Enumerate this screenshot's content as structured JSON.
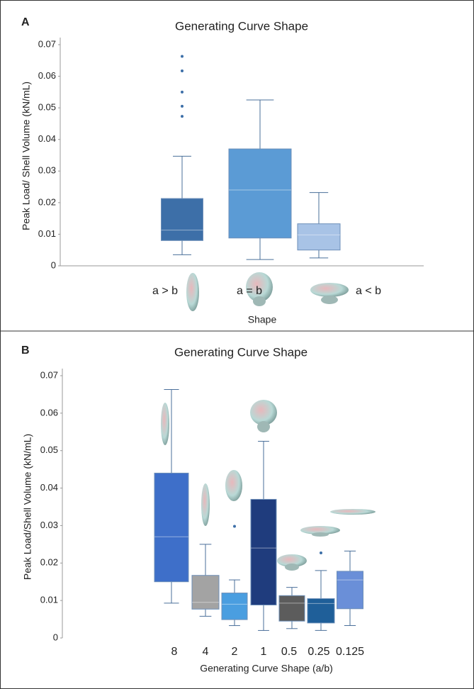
{
  "chart_data": [
    {
      "type": "box",
      "panel_label": "A",
      "title": "Generating Curve Shape",
      "y_label": "Peak Load/ Shell Volume (kN/mL)",
      "x_label": "Shape",
      "categories": [
        "a > b",
        "a = b",
        "a < b"
      ],
      "ylim": [
        0,
        0.07
      ],
      "yticks": [
        0,
        0.01,
        0.02,
        0.03,
        0.04,
        0.05,
        0.06,
        0.07
      ],
      "boxes": [
        {
          "whisker_low": 0.0035,
          "q1": 0.008,
          "median": 0.0113,
          "q3": 0.0213,
          "whisker_high": 0.0347,
          "outliers": [
            0.0473,
            0.0505,
            0.055,
            0.0617,
            0.0663
          ],
          "color": "#3d6fa8"
        },
        {
          "whisker_low": 0.002,
          "q1": 0.0088,
          "median": 0.024,
          "q3": 0.037,
          "whisker_high": 0.0525,
          "outliers": [],
          "color": "#5b9bd5"
        },
        {
          "whisker_low": 0.0025,
          "q1": 0.005,
          "median": 0.0098,
          "q3": 0.0133,
          "whisker_high": 0.0232,
          "outliers": [],
          "color": "#a8c3e6"
        }
      ]
    },
    {
      "type": "box",
      "panel_label": "B",
      "title": "Generating Curve Shape",
      "y_label": "Peak Load/Shell Volume (kN/mL)",
      "x_label": "Generating Curve Shape (a/b)",
      "categories": [
        "8",
        "4",
        "2",
        "1",
        "0.5",
        "0.25",
        "0.125"
      ],
      "ylim": [
        0,
        0.07
      ],
      "yticks": [
        0,
        0.01,
        0.02,
        0.03,
        0.04,
        0.05,
        0.06,
        0.07
      ],
      "boxes": [
        {
          "whisker_low": 0.0093,
          "q1": 0.015,
          "median": 0.027,
          "q3": 0.044,
          "whisker_high": 0.0663,
          "outliers": [],
          "color": "#3e6fc9"
        },
        {
          "whisker_low": 0.0058,
          "q1": 0.0077,
          "median": 0.0095,
          "q3": 0.0167,
          "whisker_high": 0.025,
          "outliers": [],
          "color": "#a3a3a3"
        },
        {
          "whisker_low": 0.0033,
          "q1": 0.0049,
          "median": 0.009,
          "q3": 0.012,
          "whisker_high": 0.0155,
          "outliers": [
            0.0298
          ],
          "color": "#4a9ee0"
        },
        {
          "whisker_low": 0.002,
          "q1": 0.0088,
          "median": 0.024,
          "q3": 0.037,
          "whisker_high": 0.0525,
          "outliers": [],
          "color": "#1f3c7d"
        },
        {
          "whisker_low": 0.0025,
          "q1": 0.0045,
          "median": 0.0093,
          "q3": 0.0113,
          "whisker_high": 0.0135,
          "outliers": [],
          "color": "#5c5c5c"
        },
        {
          "whisker_low": 0.002,
          "q1": 0.004,
          "median": 0.0092,
          "q3": 0.0105,
          "whisker_high": 0.018,
          "outliers": [
            0.0227
          ],
          "color": "#1f5f99"
        },
        {
          "whisker_low": 0.0033,
          "q1": 0.0078,
          "median": 0.0155,
          "q3": 0.0178,
          "whisker_high": 0.0232,
          "outliers": [],
          "color": "#6a8fd8"
        }
      ]
    }
  ]
}
